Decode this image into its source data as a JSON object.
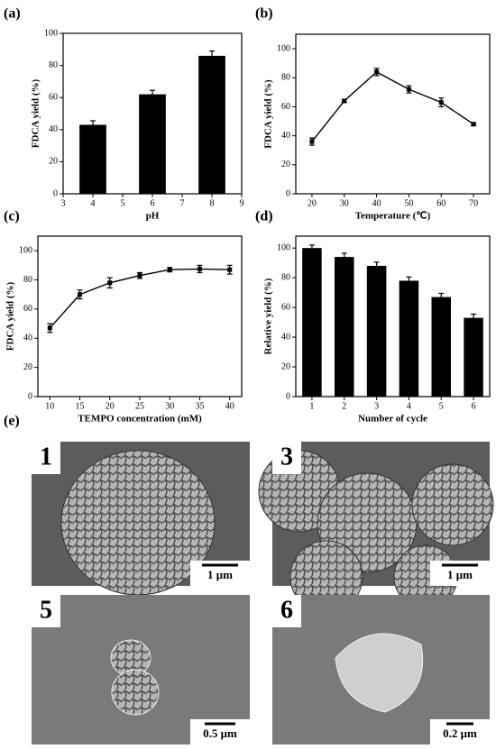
{
  "chart_data": [
    {
      "type": "bar",
      "panel_label": "(a)",
      "xlabel": "pH",
      "ylabel": "FDCA yield (%)",
      "x": [
        4,
        6,
        8
      ],
      "values": [
        43,
        62,
        86
      ],
      "errors": [
        2.5,
        2.5,
        3
      ],
      "color": "#000000",
      "xlim": [
        3,
        9
      ],
      "xticks": [
        3,
        4,
        5,
        6,
        7,
        8,
        9
      ],
      "ylim": [
        0,
        100
      ],
      "yticks": [
        0,
        20,
        40,
        60,
        80,
        100
      ]
    },
    {
      "type": "line",
      "panel_label": "(b)",
      "xlabel": "Temperature (℃)",
      "ylabel": "FDCA yield (%)",
      "x": [
        20,
        30,
        40,
        50,
        60,
        70
      ],
      "values": [
        36,
        64,
        84,
        72,
        63,
        48
      ],
      "errors": [
        2.5,
        1,
        2.5,
        2.5,
        3,
        1
      ],
      "color": "#000000",
      "xlim": [
        15,
        75
      ],
      "xticks": [
        20,
        30,
        40,
        50,
        60,
        70
      ],
      "ylim": [
        0,
        110
      ],
      "yticks": [
        0,
        20,
        40,
        60,
        80,
        100
      ]
    },
    {
      "type": "line",
      "panel_label": "(c)",
      "xlabel": "TEMPO concentration (mM)",
      "ylabel": "FDCA yield (%)",
      "x": [
        10,
        15,
        20,
        25,
        30,
        35,
        40
      ],
      "values": [
        47,
        70,
        78,
        83,
        87,
        87.5,
        87
      ],
      "errors": [
        3,
        3,
        3.5,
        2,
        1.5,
        2.5,
        3
      ],
      "color": "#000000",
      "xlim": [
        8,
        42
      ],
      "xticks": [
        10,
        15,
        20,
        25,
        30,
        35,
        40
      ],
      "ylim": [
        0,
        110
      ],
      "yticks": [
        0,
        20,
        40,
        60,
        80,
        100
      ]
    },
    {
      "type": "bar",
      "panel_label": "(d)",
      "xlabel": "Number of cycle",
      "ylabel": "Relative yield (%)",
      "categories": [
        "1",
        "2",
        "3",
        "4",
        "5",
        "6"
      ],
      "values": [
        100,
        94,
        88,
        78,
        67,
        53
      ],
      "errors": [
        2,
        2.5,
        2.5,
        2.5,
        2.5,
        2.5
      ],
      "color": "#000000",
      "ylim": [
        0,
        108
      ],
      "yticks": [
        0,
        20,
        40,
        60,
        80,
        100
      ]
    }
  ],
  "figure_e": {
    "panel_label": "(e)",
    "images": [
      {
        "number": "1",
        "scale_bar": "1 μm"
      },
      {
        "number": "3",
        "scale_bar": "1 μm"
      },
      {
        "number": "5",
        "scale_bar": "0.5 μm"
      },
      {
        "number": "6",
        "scale_bar": "0.2 μm"
      }
    ]
  }
}
